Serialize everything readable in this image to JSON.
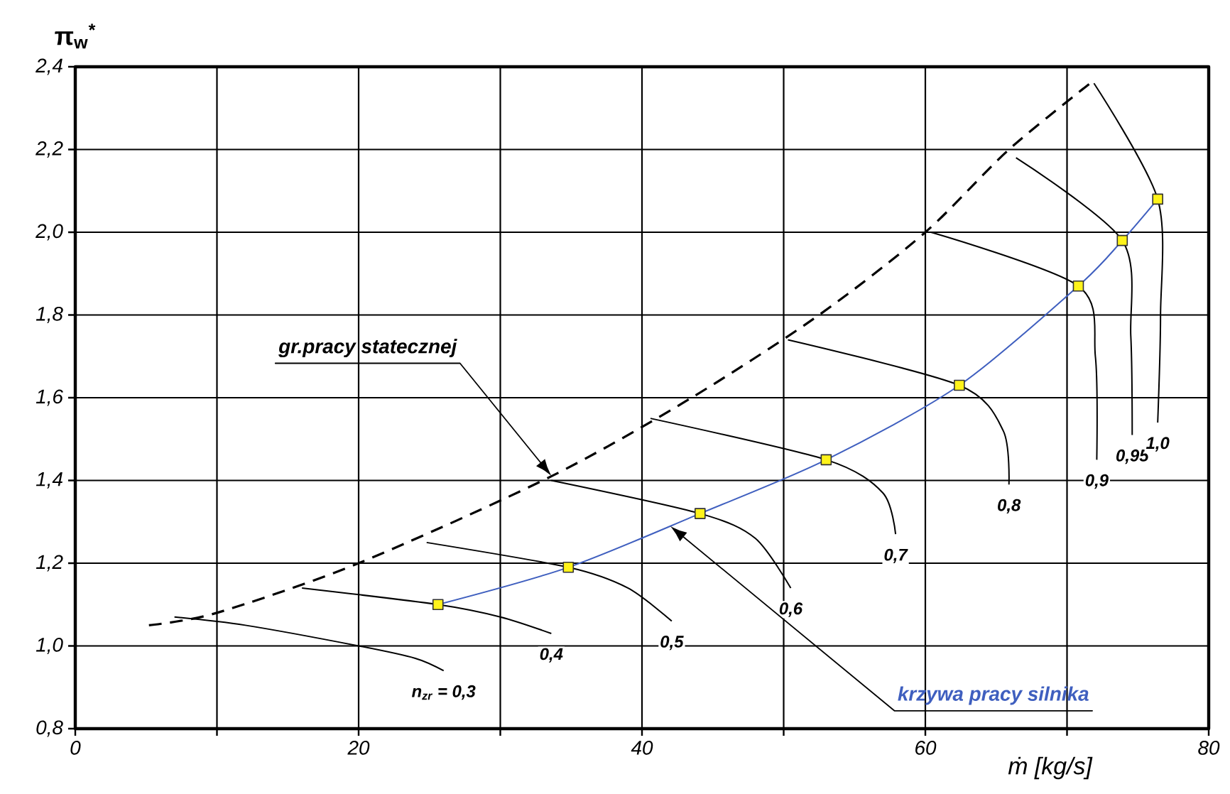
{
  "chart_data": {
    "type": "line",
    "xlabel": "ṁ [kg/s]",
    "ylabel": "π$_{w}$$^{*}$",
    "xlim": [
      0,
      80
    ],
    "ylim": [
      0.8,
      2.4
    ],
    "xticks": [
      0,
      {
        "value": 10,
        "label": null
      },
      20,
      {
        "value": 30,
        "label": null
      },
      40,
      {
        "value": 50,
        "label": null
      },
      60,
      {
        "value": 70,
        "label": null
      },
      80
    ],
    "yticks": [
      {
        "value": 0.8,
        "label": "0,8"
      },
      {
        "value": 1.0,
        "label": "1,0"
      },
      {
        "value": 1.2,
        "label": "1,2"
      },
      {
        "value": 1.4,
        "label": "1,4"
      },
      {
        "value": 1.6,
        "label": "1,6"
      },
      {
        "value": 1.8,
        "label": "1,8"
      },
      {
        "value": 2.0,
        "label": "2,0"
      },
      {
        "value": 2.2,
        "label": "2,2"
      },
      {
        "value": 2.4,
        "label": "2,4"
      }
    ],
    "grid": true,
    "series": [
      {
        "color": "#000000",
        "line_style": "dashed",
        "marker": "none",
        "x": [
          5.2,
          10,
          20,
          33.6,
          43.5,
          52.5,
          60,
          65.9,
          72
        ],
        "values": [
          1.05,
          1.08,
          1.2,
          1.41,
          1.6,
          1.8,
          2.0,
          2.2,
          2.37
        ]
      },
      {
        "color": "#3f5fbf",
        "line_style": "solid",
        "marker": "square",
        "x": [
          25.6,
          34.8,
          44.1,
          53.0,
          62.4,
          70.8,
          73.9,
          76.4
        ],
        "values": [
          1.1,
          1.19,
          1.32,
          1.45,
          1.63,
          1.87,
          1.98,
          2.08
        ]
      },
      {
        "name": "n$_{zr}$ = 0,3",
        "color": "#000000",
        "line_style": "solid",
        "marker": "none",
        "x": [
          7.0,
          12,
          20,
          24,
          26
        ],
        "values": [
          1.07,
          1.05,
          1.0,
          0.97,
          0.94
        ]
      },
      {
        "name": "0,4",
        "color": "#000000",
        "line_style": "solid",
        "marker": "none",
        "x": [
          16.0,
          25.6,
          30,
          33.6
        ],
        "values": [
          1.14,
          1.1,
          1.07,
          1.03
        ]
      },
      {
        "name": "0,5",
        "color": "#000000",
        "line_style": "solid",
        "marker": "none",
        "x": [
          24.8,
          34.8,
          39,
          42.1
        ],
        "values": [
          1.25,
          1.19,
          1.14,
          1.06
        ]
      },
      {
        "name": "0,6",
        "color": "#000000",
        "line_style": "solid",
        "marker": "none",
        "x": [
          33.6,
          44.1,
          48,
          50.5
        ],
        "values": [
          1.4,
          1.32,
          1.26,
          1.14
        ]
      },
      {
        "name": "0,7",
        "color": "#000000",
        "line_style": "solid",
        "marker": "none",
        "x": [
          40.6,
          53.0,
          57,
          57.9
        ],
        "values": [
          1.55,
          1.45,
          1.37,
          1.27
        ]
      },
      {
        "name": "0,8",
        "color": "#000000",
        "line_style": "solid",
        "marker": "none",
        "x": [
          50.3,
          62.4,
          65.5,
          65.9
        ],
        "values": [
          1.74,
          1.63,
          1.52,
          1.39
        ]
      },
      {
        "name": "0,9",
        "color": "#000000",
        "line_style": "solid",
        "marker": "none",
        "x": [
          60.4,
          70.8,
          72,
          72.1
        ],
        "values": [
          2.0,
          1.87,
          1.7,
          1.45
        ]
      },
      {
        "name": "0,95",
        "color": "#000000",
        "line_style": "solid",
        "marker": "none",
        "x": [
          66.4,
          73.9,
          74.5,
          74.6
        ],
        "values": [
          2.18,
          1.98,
          1.75,
          1.51
        ]
      },
      {
        "name": "1,0",
        "color": "#000000",
        "line_style": "solid",
        "marker": "none",
        "x": [
          71.9,
          76.4,
          76.6,
          76.4
        ],
        "values": [
          2.36,
          2.08,
          1.8,
          1.54
        ]
      }
    ],
    "annotations": [
      "gr.pracy statecznej",
      "krzywa pracy silnika"
    ]
  }
}
